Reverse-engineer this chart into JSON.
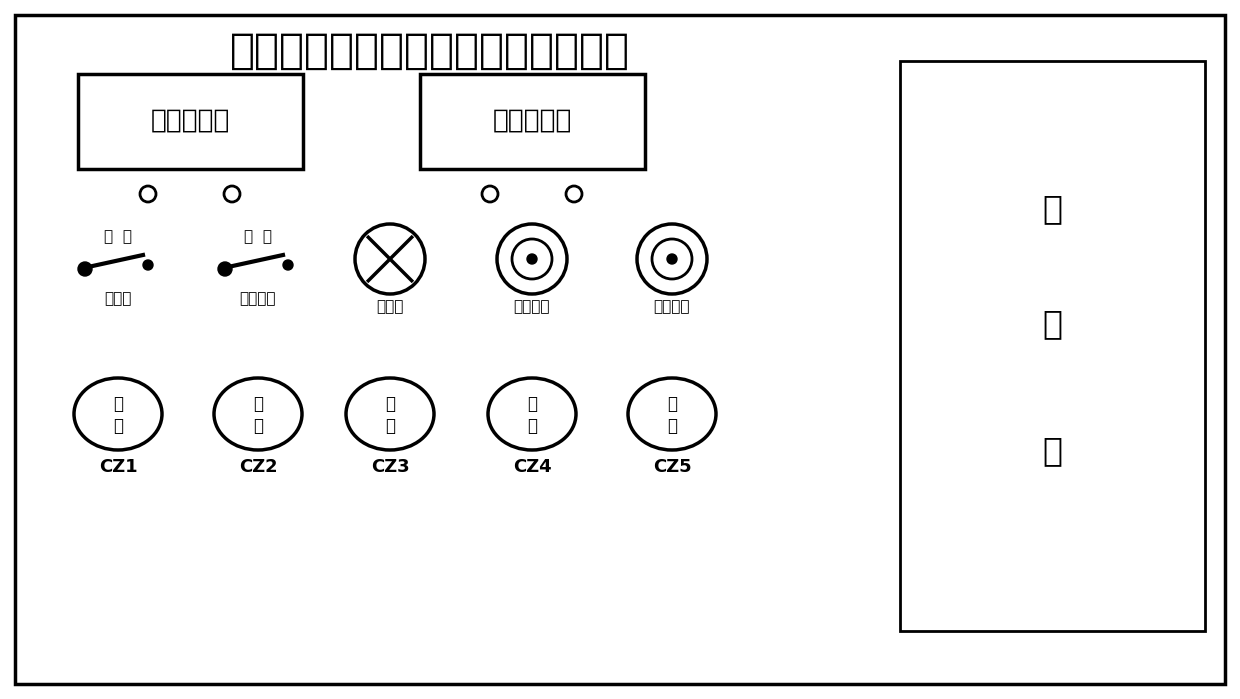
{
  "title": "飞机近地告警系统地面离位检测装置",
  "meter1_label": "直流电压表",
  "meter2_label": "直流电流表",
  "switch1_label_top": "接  通",
  "switch1_label_bot": "总开关",
  "switch2_label_top": "接  通",
  "switch2_label_bot": "系统供电",
  "indicator_label": "通讯灯",
  "fuse_label": "直流保险",
  "antenna_label": "通讯天线",
  "cz_labels": [
    "CZ1",
    "CZ2",
    "CZ3",
    "CZ4",
    "CZ5"
  ],
  "cable_box_chars": [
    "电",
    "缆",
    "盒"
  ],
  "bg_color": "#ffffff",
  "border_color": "#000000",
  "text_color": "#000000",
  "title_fontsize": 30,
  "meter_fontsize": 19,
  "label_fontsize": 12,
  "cz_fontsize": 13,
  "cable_fontsize": 24
}
